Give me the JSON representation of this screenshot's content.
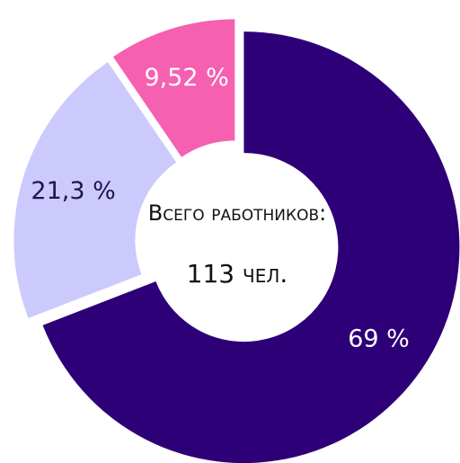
{
  "chart_data": {
    "type": "donut",
    "categories": [
      null,
      null,
      null
    ],
    "values": [
      69,
      21.3,
      9.52
    ],
    "value_labels": [
      "69 %",
      "21,3 %",
      "9,52 %"
    ],
    "colors": [
      "#2e0078",
      "#cccafc",
      "#f560b0"
    ],
    "label_colors": [
      "#ffffff",
      "#1e1450",
      "#ffffff"
    ],
    "center_text": [
      "Всего работников:",
      "113 чел."
    ]
  }
}
